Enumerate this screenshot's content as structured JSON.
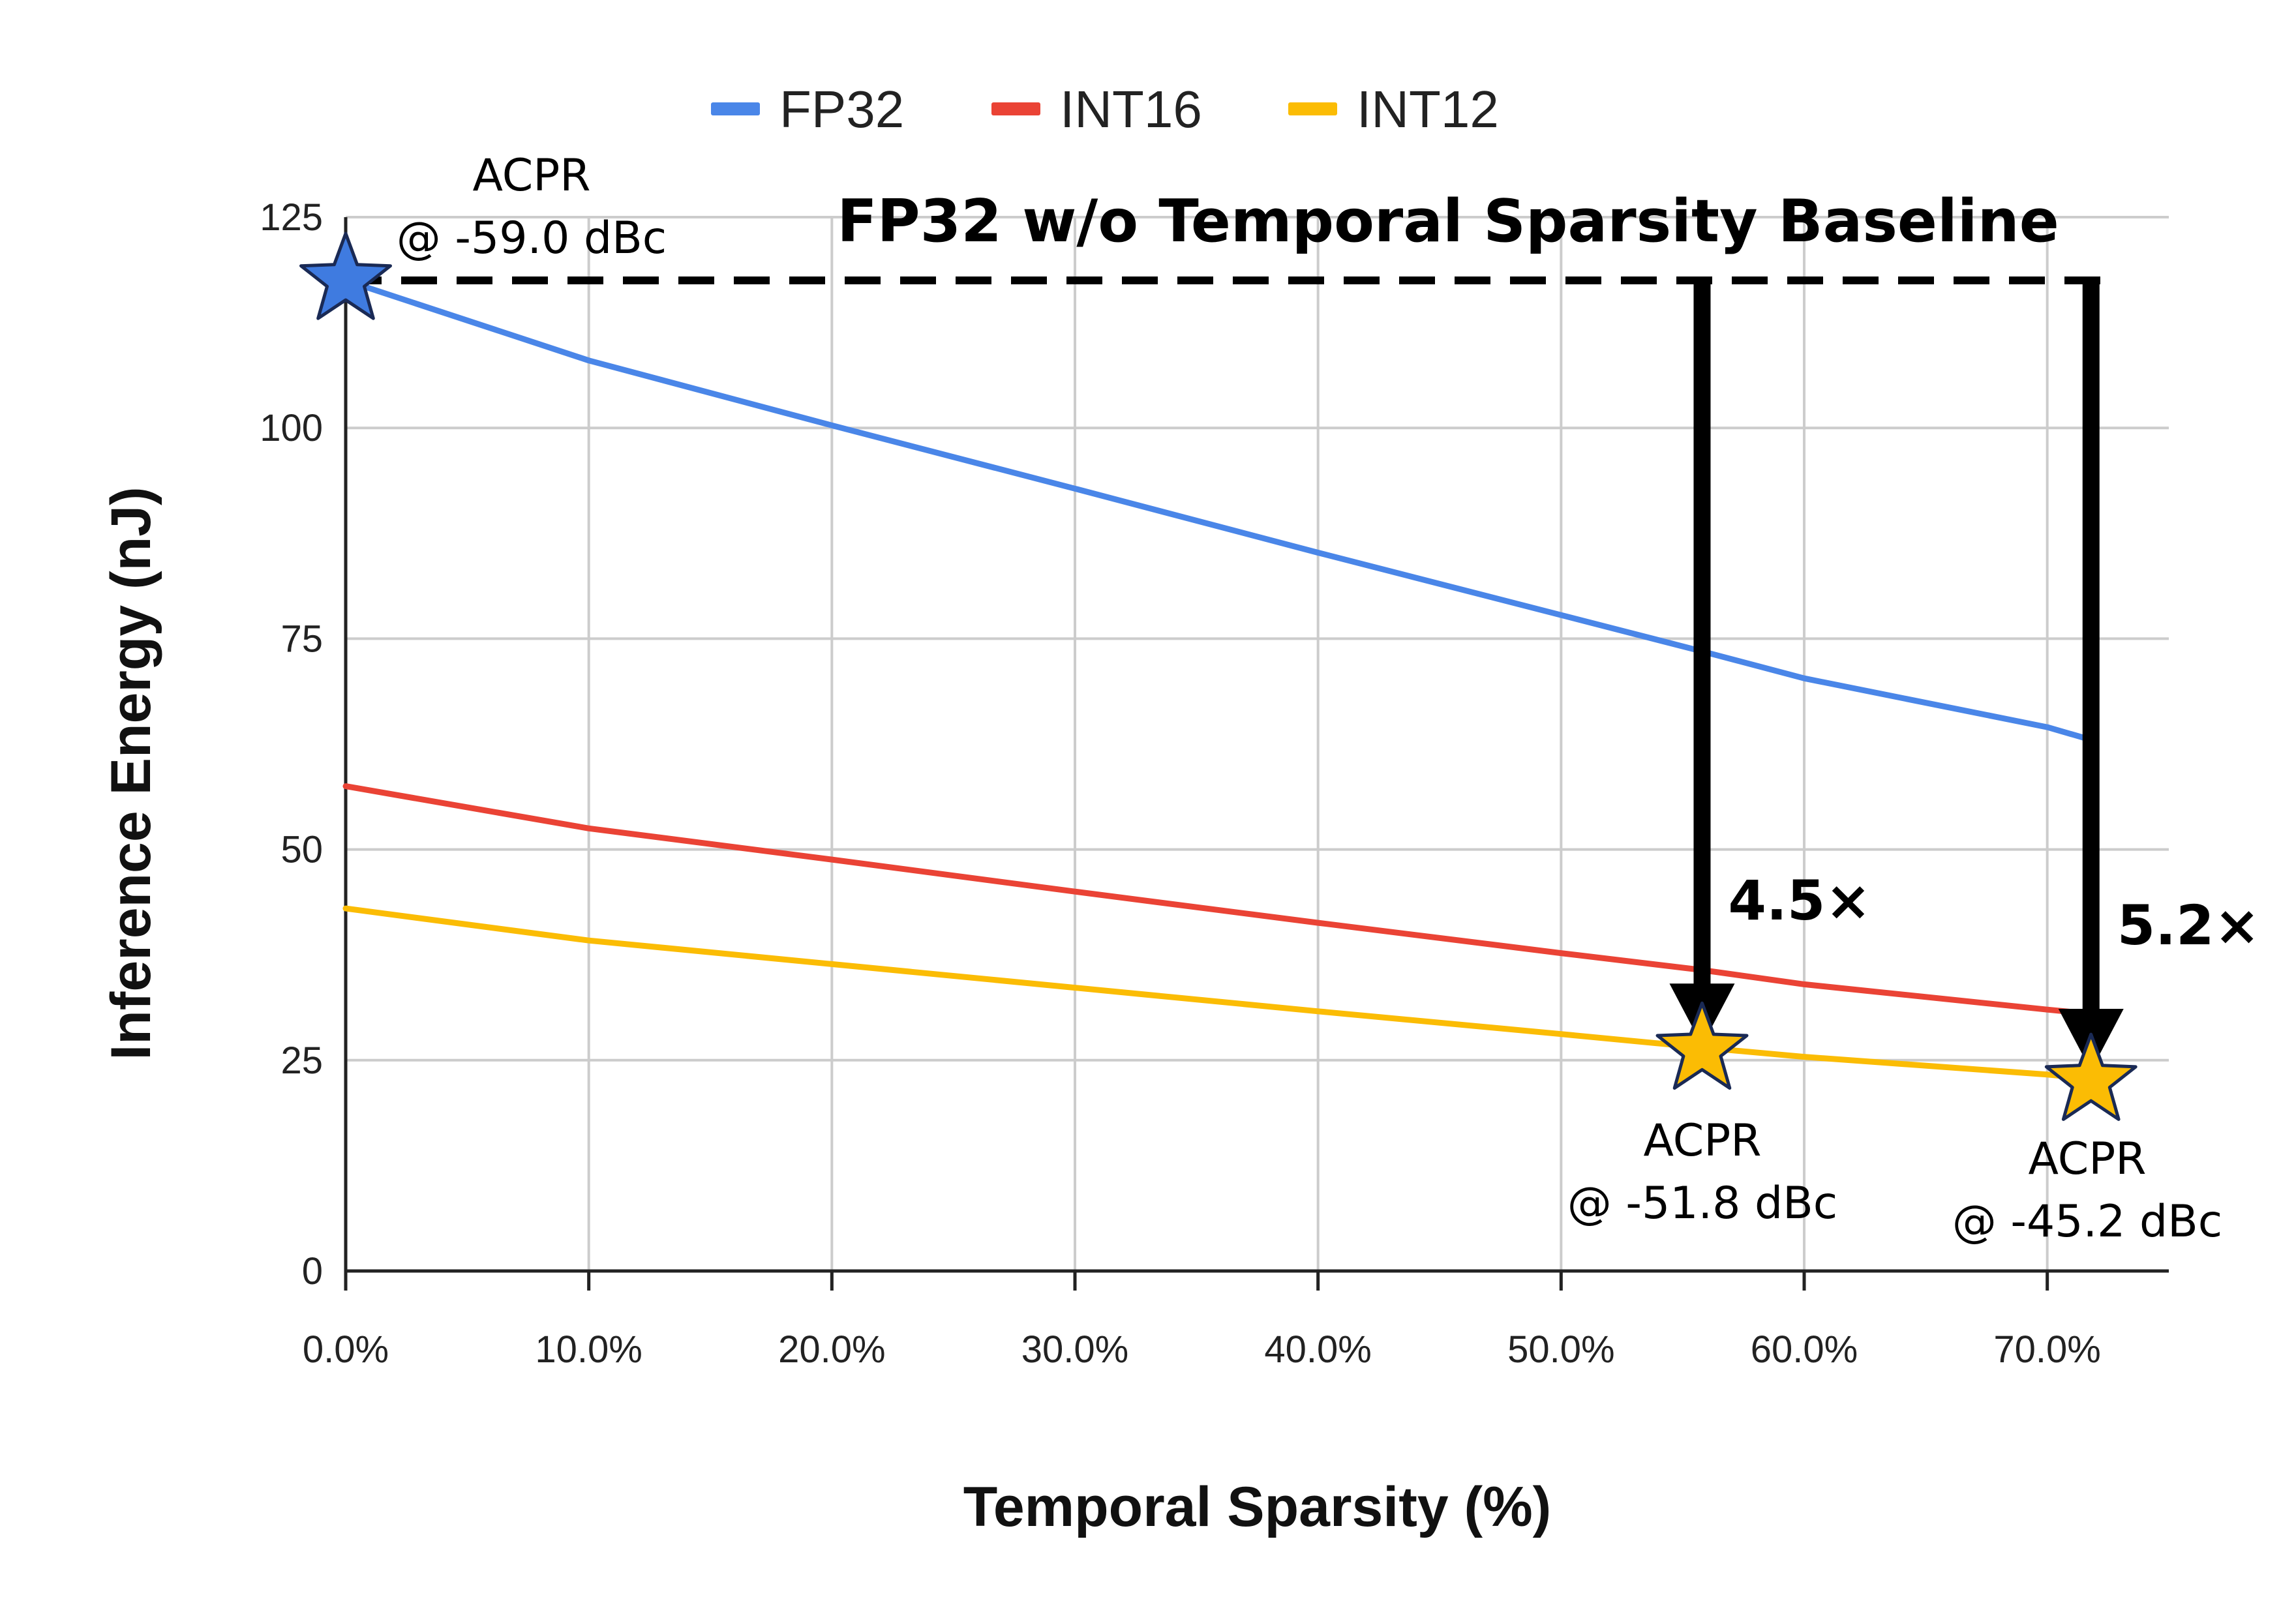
{
  "chart_data": {
    "type": "line",
    "xlabel": "Temporal Sparsity (%)",
    "ylabel": "Inference Energy (nJ)",
    "xlim": [
      0,
      75
    ],
    "ylim": [
      0,
      125
    ],
    "x_ticks": [
      0,
      10,
      20,
      30,
      40,
      50,
      60,
      70
    ],
    "x_tick_labels": [
      "0.0%",
      "10.0%",
      "20.0%",
      "30.0%",
      "40.0%",
      "50.0%",
      "60.0%",
      "70.0%"
    ],
    "y_ticks": [
      0,
      25,
      50,
      75,
      100,
      125
    ],
    "y_tick_labels": [
      "0",
      "25",
      "50",
      "75",
      "100",
      "125"
    ],
    "grid": true,
    "legend_position": "top-center",
    "series": [
      {
        "name": "FP32",
        "color": "#4a86e8",
        "x": [
          0,
          10,
          20,
          30,
          40,
          50,
          55.8,
          60,
          70,
          71.8
        ],
        "values": [
          117.5,
          108,
          100.3,
          92.8,
          85.2,
          77.8,
          73.5,
          70.3,
          64.5,
          63
        ]
      },
      {
        "name": "INT16",
        "color": "#ea4335",
        "x": [
          0,
          10,
          20,
          30,
          40,
          50,
          55.8,
          60,
          70,
          71.8
        ],
        "values": [
          57.5,
          52.5,
          48.8,
          45,
          41.3,
          37.7,
          35.7,
          34,
          31,
          30.5
        ]
      },
      {
        "name": "INT12",
        "color": "#fbbc04",
        "x": [
          0,
          10,
          20,
          30,
          40,
          50,
          55.8,
          60,
          70,
          71.8
        ],
        "values": [
          43,
          39.2,
          36.4,
          33.6,
          30.8,
          28.1,
          26.5,
          25.4,
          23.3,
          22.8
        ]
      }
    ],
    "baseline": {
      "label": "FP32 w/o Temporal Sparsity Baseline",
      "value": 117.5
    },
    "stars": [
      {
        "x": 0,
        "y": 117.5,
        "color": "#3f7be0",
        "acpr_label": "ACPR",
        "acpr_value": "@ -59.0 dBc"
      },
      {
        "x": 55.8,
        "y": 26.2,
        "color": "#fbbc04",
        "acpr_label": "ACPR",
        "acpr_value": "@ -51.8 dBc"
      },
      {
        "x": 71.8,
        "y": 22.5,
        "color": "#fbbc04",
        "acpr_label": "ACPR",
        "acpr_value": "@ -45.2 dBc"
      }
    ],
    "arrows": [
      {
        "x": 55.8,
        "from": 117.5,
        "to": 31,
        "label": "4.5×"
      },
      {
        "x": 71.8,
        "from": 117.5,
        "to": 28,
        "label": "5.2×"
      }
    ]
  }
}
